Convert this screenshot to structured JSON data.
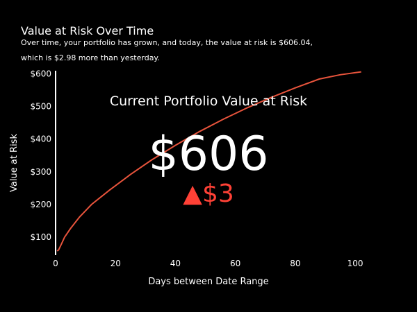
{
  "chart_data": {
    "type": "line",
    "title": "Value at Risk Over Time",
    "subtitle_line1": "Over time, your portfolio has grown, and today, the value at risk is $606.04,",
    "subtitle_line2": "which is $2.98 more than yesterday.",
    "xlabel": "Days between Date Range",
    "ylabel": "Value at Risk",
    "xlim": [
      0,
      103
    ],
    "ylim": [
      45,
      620
    ],
    "x_ticks": [
      0,
      20,
      40,
      60,
      80,
      100
    ],
    "y_ticks": [
      100,
      200,
      300,
      400,
      500,
      600
    ],
    "y_tick_labels": [
      "$100",
      "$200",
      "$300",
      "$400",
      "$500",
      "$600"
    ],
    "grid": false,
    "series": [
      {
        "x": [
          0.5,
          1,
          2,
          3,
          5,
          8,
          12,
          18,
          25,
          32,
          40,
          48,
          56,
          64,
          72,
          80,
          88,
          95,
          102
        ],
        "values": [
          58,
          61,
          80,
          100,
          127,
          162,
          200,
          244,
          292,
          336,
          381,
          423,
          461,
          496,
          528,
          557,
          584,
          597,
          606
        ],
        "color": "#e8543c"
      }
    ],
    "indicator": {
      "title": "Current Portfolio Value at Risk",
      "value": "$606",
      "delta_symbol": "▲",
      "delta": "$3",
      "delta_color": "#ff4136"
    }
  }
}
